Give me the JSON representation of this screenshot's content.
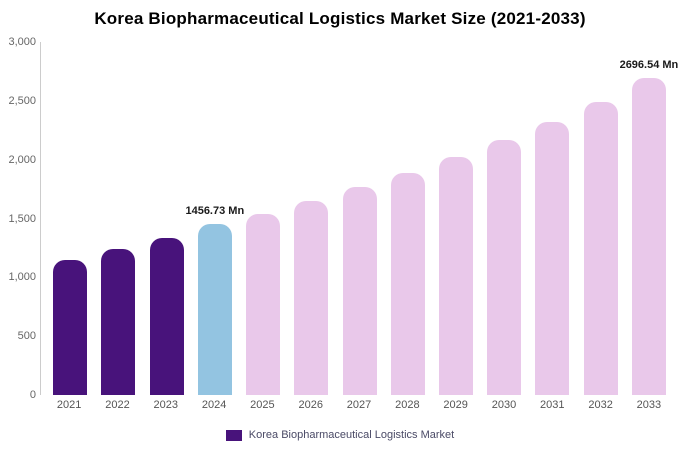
{
  "title": "Korea Biopharmaceutical Logistics Market Size (2021-2033)",
  "legend": {
    "label": "Korea Biopharmaceutical Logistics Market",
    "swatch_color": "#48137b"
  },
  "chart_data": {
    "type": "bar",
    "title": "Korea Biopharmaceutical Logistics Market Size (2021-2033)",
    "categories": [
      "2021",
      "2022",
      "2023",
      "2024",
      "2025",
      "2026",
      "2027",
      "2028",
      "2029",
      "2030",
      "2031",
      "2032",
      "2033"
    ],
    "values": [
      1150,
      1245,
      1335,
      1456.73,
      1535,
      1645,
      1765,
      1890,
      2025,
      2170,
      2320,
      2490,
      2696.54
    ],
    "bar_colors": [
      "#48137b",
      "#48137b",
      "#48137b",
      "#93c4e1",
      "#e9c8ea",
      "#e9c8ea",
      "#e9c8ea",
      "#e9c8ea",
      "#e9c8ea",
      "#e9c8ea",
      "#e9c8ea",
      "#e9c8ea",
      "#e9c8ea"
    ],
    "annotations": [
      {
        "category": "2024",
        "text": "1456.73 Mn"
      },
      {
        "category": "2033",
        "text": "2696.54 Mn"
      }
    ],
    "xlabel": "",
    "ylabel": "",
    "ylim": [
      0,
      3000
    ],
    "yticks": [
      "0",
      "500",
      "1,000",
      "1,500",
      "2,000",
      "2,500",
      "3,000"
    ],
    "grid": false,
    "legend_position": "bottom",
    "legend_entries": [
      "Korea Biopharmaceutical Logistics Market"
    ]
  }
}
